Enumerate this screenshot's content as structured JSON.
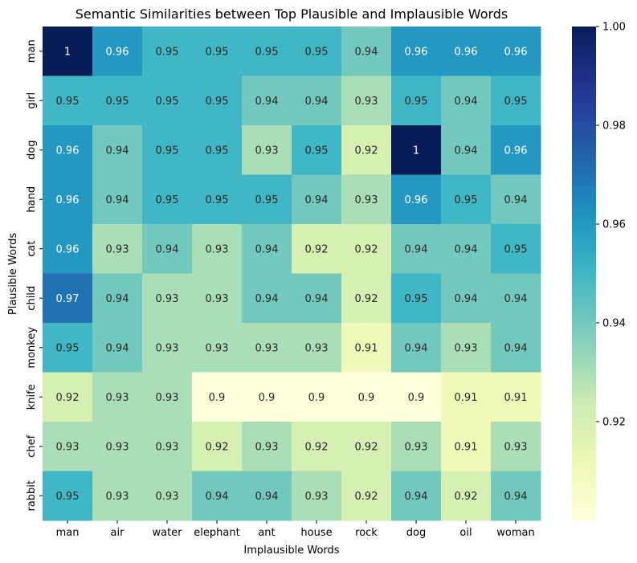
{
  "chart_data": {
    "type": "heatmap",
    "title": "Semantic Similarities between Top Plausible and Implausible Words",
    "xlabel": "Implausible Words",
    "ylabel": "Plausible Words",
    "x_categories": [
      "man",
      "air",
      "water",
      "elephant",
      "ant",
      "house",
      "rock",
      "dog",
      "oil",
      "woman"
    ],
    "y_categories": [
      "man",
      "girl",
      "dog",
      "hand",
      "cat",
      "child",
      "monkey",
      "knife",
      "chef",
      "rabbit"
    ],
    "values": [
      [
        1,
        0.96,
        0.95,
        0.95,
        0.95,
        0.95,
        0.94,
        0.96,
        0.96,
        0.96
      ],
      [
        0.95,
        0.95,
        0.95,
        0.95,
        0.94,
        0.94,
        0.93,
        0.95,
        0.94,
        0.95
      ],
      [
        0.96,
        0.94,
        0.95,
        0.95,
        0.93,
        0.95,
        0.92,
        1,
        0.94,
        0.96
      ],
      [
        0.96,
        0.94,
        0.95,
        0.95,
        0.95,
        0.94,
        0.93,
        0.96,
        0.95,
        0.94
      ],
      [
        0.96,
        0.93,
        0.94,
        0.93,
        0.94,
        0.92,
        0.92,
        0.94,
        0.94,
        0.95
      ],
      [
        0.97,
        0.94,
        0.93,
        0.93,
        0.94,
        0.94,
        0.92,
        0.95,
        0.94,
        0.94
      ],
      [
        0.95,
        0.94,
        0.93,
        0.93,
        0.93,
        0.93,
        0.91,
        0.94,
        0.93,
        0.94
      ],
      [
        0.92,
        0.93,
        0.93,
        0.9,
        0.9,
        0.9,
        0.9,
        0.9,
        0.91,
        0.91
      ],
      [
        0.93,
        0.93,
        0.93,
        0.92,
        0.93,
        0.92,
        0.92,
        0.93,
        0.91,
        0.93
      ],
      [
        0.95,
        0.93,
        0.93,
        0.94,
        0.94,
        0.93,
        0.92,
        0.94,
        0.92,
        0.94
      ]
    ],
    "display_values": [
      [
        "1",
        "0.96",
        "0.95",
        "0.95",
        "0.95",
        "0.95",
        "0.94",
        "0.96",
        "0.96",
        "0.96"
      ],
      [
        "0.95",
        "0.95",
        "0.95",
        "0.95",
        "0.94",
        "0.94",
        "0.93",
        "0.95",
        "0.94",
        "0.95"
      ],
      [
        "0.96",
        "0.94",
        "0.95",
        "0.95",
        "0.93",
        "0.95",
        "0.92",
        "1",
        "0.94",
        "0.96"
      ],
      [
        "0.96",
        "0.94",
        "0.95",
        "0.95",
        "0.95",
        "0.94",
        "0.93",
        "0.96",
        "0.95",
        "0.94"
      ],
      [
        "0.96",
        "0.93",
        "0.94",
        "0.93",
        "0.94",
        "0.92",
        "0.92",
        "0.94",
        "0.94",
        "0.95"
      ],
      [
        "0.97",
        "0.94",
        "0.93",
        "0.93",
        "0.94",
        "0.94",
        "0.92",
        "0.95",
        "0.94",
        "0.94"
      ],
      [
        "0.95",
        "0.94",
        "0.93",
        "0.93",
        "0.93",
        "0.93",
        "0.91",
        "0.94",
        "0.93",
        "0.94"
      ],
      [
        "0.92",
        "0.93",
        "0.93",
        "0.9",
        "0.9",
        "0.9",
        "0.9",
        "0.9",
        "0.91",
        "0.91"
      ],
      [
        "0.93",
        "0.93",
        "0.93",
        "0.92",
        "0.93",
        "0.92",
        "0.92",
        "0.93",
        "0.91",
        "0.93"
      ],
      [
        "0.95",
        "0.93",
        "0.93",
        "0.94",
        "0.94",
        "0.93",
        "0.92",
        "0.94",
        "0.92",
        "0.94"
      ]
    ],
    "colormap": "YlGnBu",
    "color_range": [
      0.9,
      1.0
    ],
    "colorbar_ticks": [
      0.92,
      0.94,
      0.96,
      0.98,
      1.0
    ],
    "colorbar_tick_labels": [
      "0.92",
      "0.94",
      "0.96",
      "0.98",
      "1.00"
    ],
    "annotation_colors": {
      "dark_text": "#262626",
      "light_text": "#ffffff"
    }
  }
}
